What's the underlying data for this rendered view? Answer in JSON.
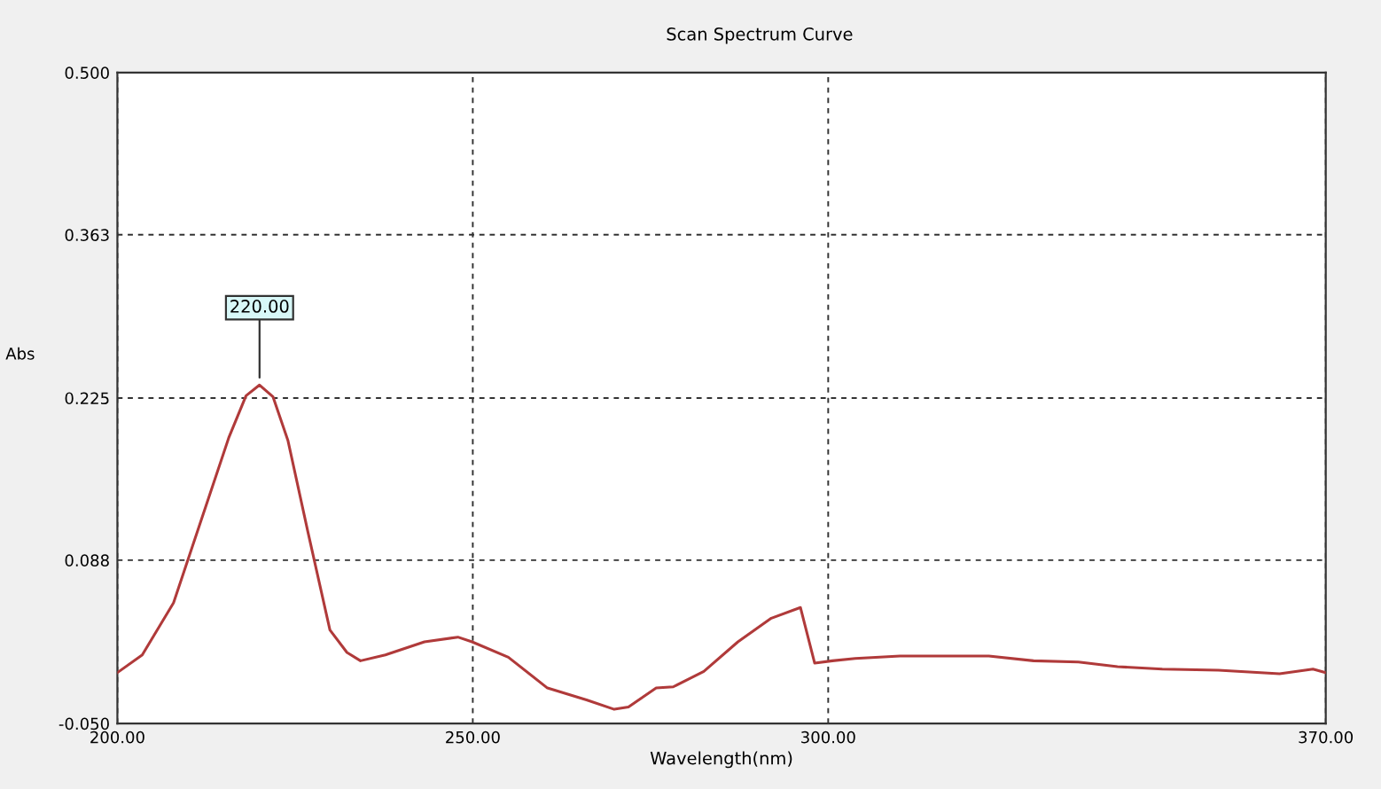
{
  "chart_data": {
    "type": "line",
    "title": "Scan Spectrum Curve",
    "xlabel": "Wavelength(nm)",
    "ylabel": "Abs",
    "series": [
      {
        "color": "#b03a3a",
        "x": [
          200,
          203.5,
          207.9,
          211.8,
          215.7,
          218.1,
          220,
          221.9,
          224,
          226.8,
          229.9,
          232.3,
          234.2,
          237.7,
          243.2,
          247.9,
          249.9,
          255,
          260.5,
          266,
          269.9,
          271.9,
          275.8,
          278.2,
          282.5,
          287.3,
          292,
          296.1,
          298.1,
          300.6,
          303.8,
          310.1,
          317.1,
          322.6,
          328.9,
          335.2,
          340.7,
          347,
          354.9,
          363.5,
          368.2,
          370
        ],
        "values": [
          -0.007,
          0.008,
          0.052,
          0.122,
          0.192,
          0.227,
          0.236,
          0.226,
          0.189,
          0.112,
          0.029,
          0.01,
          0.003,
          0.008,
          0.019,
          0.023,
          0.019,
          0.006,
          -0.02,
          -0.03,
          -0.038,
          -0.036,
          -0.02,
          -0.019,
          -0.006,
          0.019,
          0.039,
          0.048,
          0.001,
          0.003,
          0.005,
          0.007,
          0.007,
          0.007,
          0.003,
          0.002,
          -0.002,
          -0.004,
          -0.005,
          -0.008,
          -0.004,
          -0.007
        ]
      }
    ],
    "annotations": [
      {
        "text": "220.00",
        "x": 220,
        "y": 0.236
      }
    ],
    "xlim": [
      200,
      370
    ],
    "ylim": [
      -0.05,
      0.5
    ],
    "xticks": [
      {
        "value": 200,
        "label": "200.00"
      },
      {
        "value": 250,
        "label": "250.00"
      },
      {
        "value": 300,
        "label": "300.00"
      },
      {
        "value": 370,
        "label": "370.00"
      }
    ],
    "yticks": [
      {
        "value": -0.05,
        "label": "-0.050"
      },
      {
        "value": 0.088,
        "label": "0.088"
      },
      {
        "value": 0.225,
        "label": "0.225"
      },
      {
        "value": 0.363,
        "label": "0.363"
      },
      {
        "value": 0.5,
        "label": "0.500"
      }
    ],
    "grid": true,
    "legend": false,
    "marker": "none",
    "line_style": "solid"
  }
}
